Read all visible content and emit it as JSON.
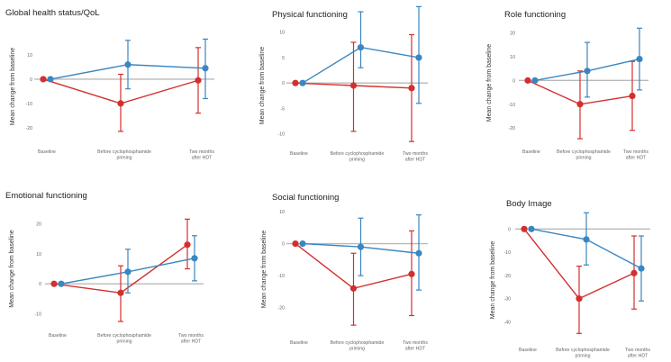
{
  "colors": {
    "red": "#d32f2f",
    "blue": "#3a86c1",
    "zero_line": "#b9b9b9"
  },
  "chart_data": [
    {
      "type": "line",
      "title": "Global health status/QoL",
      "ylabel": "Mean change from baseline",
      "categories": [
        "Baseline",
        "Before cyclophosphamide\npriming",
        "Two months\nafter HDT"
      ],
      "yticks": [
        10,
        0,
        -10,
        -20
      ],
      "ylim": [
        -26,
        20
      ],
      "series": [
        {
          "color": "red",
          "values": [
            0,
            -10,
            -0.5
          ],
          "err_low": [
            0,
            -21.5,
            -14
          ],
          "err_high": [
            0,
            2,
            13
          ]
        },
        {
          "color": "blue",
          "values": [
            0,
            6,
            4.5
          ],
          "err_low": [
            0,
            -4,
            -8
          ],
          "err_high": [
            0,
            16,
            16.5
          ]
        }
      ]
    },
    {
      "type": "line",
      "title": "Physical functioning",
      "ylabel": "Mean change from baseline",
      "categories": [
        "Baseline",
        "Before cyclophosphamide\npriming",
        "Two months\nafter HDT"
      ],
      "yticks": [
        10,
        5,
        0,
        -5,
        -10
      ],
      "ylim": [
        -12,
        11
      ],
      "series": [
        {
          "color": "red",
          "values": [
            0,
            -0.5,
            -1
          ],
          "err_low": [
            0,
            -9.5,
            -11.5
          ],
          "err_high": [
            0,
            8,
            9.5
          ]
        },
        {
          "color": "blue",
          "values": [
            0,
            7,
            5
          ],
          "err_low": [
            0,
            3,
            -4
          ],
          "err_high": [
            0,
            14,
            15
          ]
        }
      ]
    },
    {
      "type": "line",
      "title": "Role functioning",
      "ylabel": "Mean change from baseline",
      "categories": [
        "Baseline",
        "Before cyclophosphamide\npriming",
        "Two months\nafter HDT"
      ],
      "yticks": [
        20,
        10,
        0,
        -10,
        -20
      ],
      "ylim": [
        -26,
        24
      ],
      "series": [
        {
          "color": "red",
          "values": [
            0,
            -10,
            -6.5
          ],
          "err_low": [
            0,
            -24.5,
            -21
          ],
          "err_high": [
            0,
            4,
            8
          ]
        },
        {
          "color": "blue",
          "values": [
            0,
            4,
            9
          ],
          "err_low": [
            0,
            -7,
            -4
          ],
          "err_high": [
            0,
            16,
            22
          ]
        }
      ]
    },
    {
      "type": "line",
      "title": "Emotional functioning",
      "ylabel": "Mean change from baseline",
      "categories": [
        "Baseline",
        "Before cyclophosphamide\npriming",
        "Two months\nafter HDT"
      ],
      "yticks": [
        20,
        10,
        0,
        -10
      ],
      "ylim": [
        -14,
        24
      ],
      "series": [
        {
          "color": "red",
          "values": [
            0,
            -3,
            13
          ],
          "err_low": [
            0,
            -12.5,
            5
          ],
          "err_high": [
            0,
            6,
            21.5
          ]
        },
        {
          "color": "blue",
          "values": [
            0,
            4,
            8.5
          ],
          "err_low": [
            0,
            -3,
            1
          ],
          "err_high": [
            0,
            11.5,
            16
          ]
        }
      ]
    },
    {
      "type": "line",
      "title": "Social functioning",
      "ylabel": "Mean change from baseline",
      "categories": [
        "Baseline",
        "Before cyclophosphamide\npriming",
        "Two months\nafter HDT"
      ],
      "yticks": [
        10,
        0,
        -10,
        -20
      ],
      "ylim": [
        -28,
        12
      ],
      "series": [
        {
          "color": "red",
          "values": [
            0,
            -14,
            -9.5
          ],
          "err_low": [
            0,
            -25.5,
            -22.5
          ],
          "err_high": [
            0,
            -3,
            4
          ]
        },
        {
          "color": "blue",
          "values": [
            0,
            -1,
            -3
          ],
          "err_low": [
            0,
            -10,
            -14.5
          ],
          "err_high": [
            0,
            8,
            9
          ]
        }
      ]
    },
    {
      "type": "line",
      "title": "Body Image",
      "ylabel": "Mean change from baseline",
      "categories": [
        "Baseline",
        "Before cyclophosphamide\npriming",
        "Two months\nafter HDT"
      ],
      "yticks": [
        0,
        -10,
        -20,
        -30,
        -40
      ],
      "ylim": [
        -48,
        4
      ],
      "series": [
        {
          "color": "red",
          "values": [
            0,
            -30,
            -19
          ],
          "err_low": [
            0,
            -45,
            -34.5
          ],
          "err_high": [
            0,
            -16,
            -3
          ]
        },
        {
          "color": "blue",
          "values": [
            0,
            -4.5,
            -17
          ],
          "err_low": [
            0,
            -15.5,
            -31
          ],
          "err_high": [
            0,
            7,
            -3
          ]
        }
      ]
    }
  ]
}
